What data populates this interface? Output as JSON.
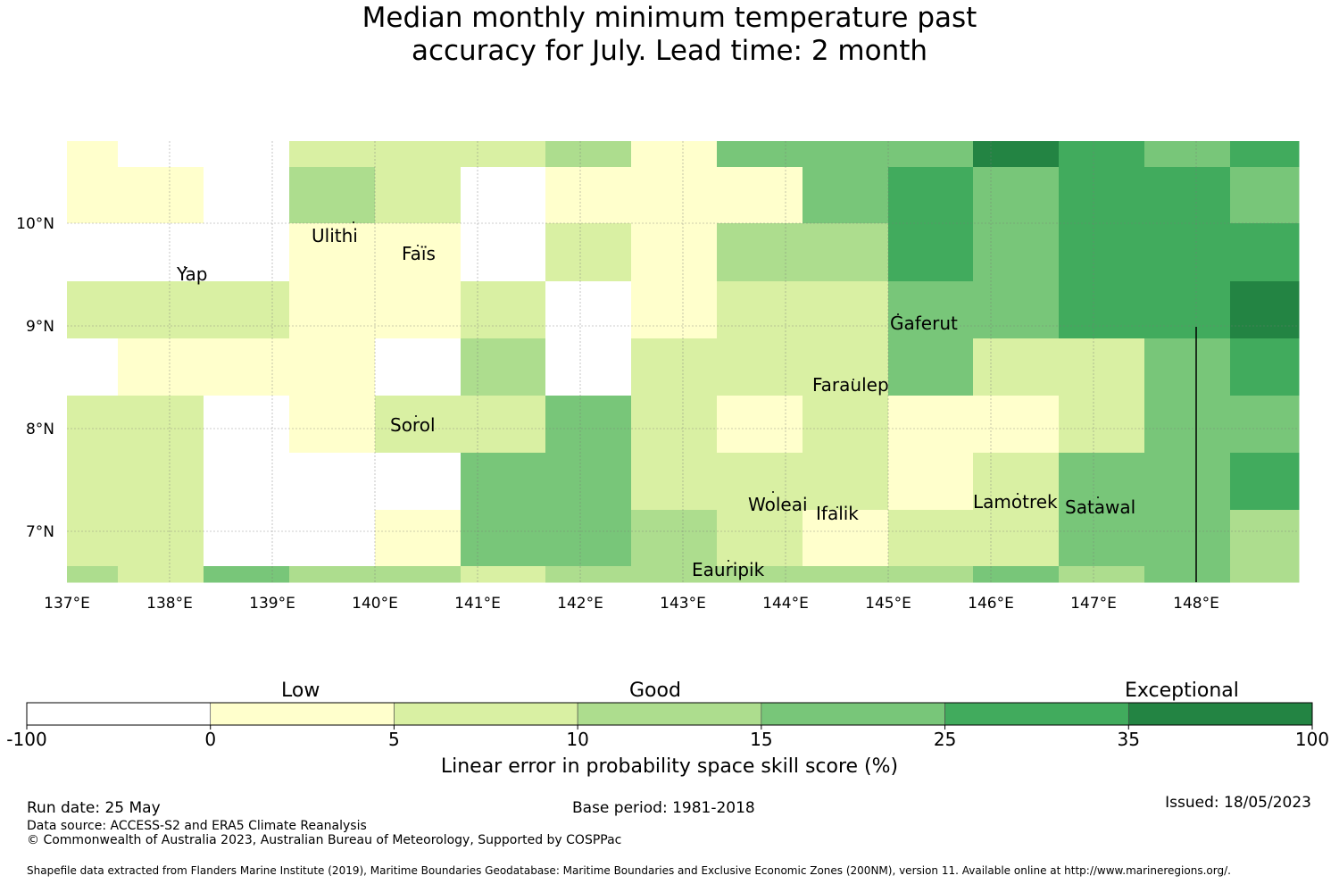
{
  "title": {
    "line1": "Median monthly minimum temperature past",
    "line2": "accuracy for July. Lead time: 2 month"
  },
  "map": {
    "x_ticks": [
      "137°E",
      "138°E",
      "139°E",
      "140°E",
      "141°E",
      "142°E",
      "143°E",
      "144°E",
      "145°E",
      "146°E",
      "147°E",
      "148°E"
    ],
    "y_ticks": [
      "10°N",
      "9°N",
      "8°N",
      "7°N"
    ],
    "islands": [
      "Ulithi",
      "Faïs",
      "Yap",
      "Gaferut",
      "Faraulep",
      "Sorol",
      "Woleai",
      "Ifalik",
      "Lamotrek",
      "Satawal",
      "Eauripik"
    ]
  },
  "chart_data": {
    "type": "heatmap",
    "x_range": [
      137,
      149
    ],
    "y_range": [
      6.5,
      10.8
    ],
    "classes": [
      "white",
      "low",
      "lowgood",
      "good",
      "goodplus",
      "high",
      "exceptional"
    ],
    "grid": [
      [
        "low",
        "white",
        "white",
        "lowgood",
        "lowgood",
        "lowgood",
        "good",
        "low",
        "goodplus",
        "goodplus",
        "goodplus",
        "exceptional",
        "high",
        "goodplus",
        "high"
      ],
      [
        "low",
        "low",
        "white",
        "good",
        "lowgood",
        "white",
        "low",
        "low",
        "low",
        "goodplus",
        "high",
        "goodplus",
        "high",
        "high",
        "goodplus"
      ],
      [
        "white",
        "white",
        "white",
        "low",
        "low",
        "white",
        "lowgood",
        "low",
        "good",
        "good",
        "high",
        "goodplus",
        "high",
        "high",
        "high"
      ],
      [
        "lowgood",
        "lowgood",
        "lowgood",
        "low",
        "low",
        "lowgood",
        "white",
        "low",
        "lowgood",
        "lowgood",
        "goodplus",
        "goodplus",
        "high",
        "high",
        "exceptional"
      ],
      [
        "white",
        "low",
        "low",
        "low",
        "white",
        "good",
        "white",
        "lowgood",
        "lowgood",
        "lowgood",
        "goodplus",
        "lowgood",
        "lowgood",
        "goodplus",
        "high"
      ],
      [
        "lowgood",
        "lowgood",
        "white",
        "low",
        "lowgood",
        "lowgood",
        "goodplus",
        "lowgood",
        "low",
        "lowgood",
        "low",
        "low",
        "lowgood",
        "goodplus",
        "goodplus"
      ],
      [
        "lowgood",
        "lowgood",
        "white",
        "white",
        "white",
        "goodplus",
        "goodplus",
        "lowgood",
        "lowgood",
        "lowgood",
        "low",
        "lowgood",
        "goodplus",
        "goodplus",
        "high"
      ],
      [
        "lowgood",
        "lowgood",
        "white",
        "white",
        "low",
        "goodplus",
        "goodplus",
        "good",
        "lowgood",
        "low",
        "lowgood",
        "lowgood",
        "goodplus",
        "goodplus",
        "good"
      ],
      [
        "good",
        "lowgood",
        "goodplus",
        "good",
        "good",
        "lowgood",
        "good",
        "good",
        "good",
        "good",
        "good",
        "goodplus",
        "good",
        "goodplus",
        "good"
      ]
    ]
  },
  "colorbar": {
    "category_labels": [
      "Low",
      "Good",
      "Exceptional"
    ],
    "tick_labels": [
      "-100",
      "0",
      "5",
      "10",
      "15",
      "25",
      "35",
      "100"
    ],
    "colors": [
      "#ffffff",
      "#ffffcc",
      "#d9f0a3",
      "#addd8e",
      "#78c679",
      "#41ab5d",
      "#238443"
    ],
    "title": "Linear error in probability space skill score (%)"
  },
  "footer": {
    "run_date": "Run date: 25 May",
    "base_period": "Base period: 1981-2018",
    "issued": "Issued: 18/05/2023",
    "data_source": "Data source: ACCESS-S2 and ERA5 Climate Reanalysis",
    "copyright": "© Commonwealth of Australia 2023, Australian Bureau of Meteorology, Supported by COSPPac",
    "shapefile": "Shapefile data extracted from Flanders Marine Institute (2019), Maritime Boundaries Geodatabase: Maritime Boundaries and Exclusive Economic Zones (200NM), version 11. Available online at http://www.marineregions.org/."
  }
}
